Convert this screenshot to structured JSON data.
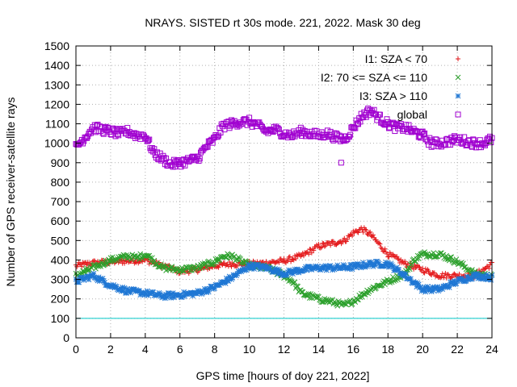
{
  "chart_data": {
    "type": "scatter",
    "title": "NRAYS. SISTED rt 30s mode. 221, 2022. Mask 30 deg",
    "xlabel": "GPS time [hours of doy 221, 2022]",
    "ylabel": "Number of GPS receiver-satellite rays",
    "xlim": [
      0,
      24
    ],
    "ylim": [
      0,
      1500
    ],
    "xticks": [
      "0",
      "2",
      "4",
      "6",
      "8",
      "10",
      "12",
      "14",
      "16",
      "18",
      "20",
      "22",
      "24"
    ],
    "yticks": [
      "0",
      "100",
      "200",
      "300",
      "400",
      "500",
      "600",
      "700",
      "800",
      "900",
      "1000",
      "1100",
      "1200",
      "1300",
      "1400",
      "1500"
    ],
    "grid": true,
    "legend_position": "top-right",
    "reference_line": {
      "y": 100,
      "color": "#00c8c8"
    },
    "series": [
      {
        "name": "I1: SZA < 70",
        "marker": "plus",
        "color": "#e41a1c",
        "x": [
          0,
          1,
          2,
          3,
          4,
          5,
          6,
          7,
          8,
          9,
          10,
          11,
          12,
          13,
          14,
          15,
          15.5,
          16,
          16.5,
          17,
          17.5,
          18,
          19,
          20,
          21,
          22,
          23,
          24
        ],
        "y": [
          370,
          385,
          390,
          395,
          400,
          370,
          340,
          350,
          370,
          380,
          380,
          385,
          395,
          420,
          470,
          490,
          500,
          540,
          560,
          530,
          480,
          430,
          380,
          350,
          320,
          320,
          320,
          380
        ]
      },
      {
        "name": "I2: 70 <= SZA <= 110",
        "marker": "cross",
        "color": "#2ca02c",
        "x": [
          0,
          1,
          2,
          3,
          3.5,
          4,
          5,
          6,
          7,
          8,
          8.5,
          9,
          10,
          11,
          12,
          12.5,
          13,
          14,
          15,
          15.5,
          16,
          17,
          18,
          19,
          19.5,
          20,
          21,
          22,
          23,
          24
        ],
        "y": [
          320,
          360,
          400,
          420,
          410,
          430,
          360,
          350,
          360,
          390,
          420,
          420,
          370,
          360,
          320,
          290,
          230,
          200,
          180,
          165,
          190,
          250,
          290,
          330,
          400,
          430,
          430,
          390,
          330,
          315
        ]
      },
      {
        "name": "I3: SZA > 110",
        "marker": "star",
        "color": "#1f77d4",
        "x": [
          0,
          1,
          2,
          3,
          4,
          5,
          6,
          7,
          8,
          9,
          10,
          11,
          12,
          13,
          14,
          15,
          16,
          17,
          18,
          19,
          20,
          21,
          22,
          23,
          24
        ],
        "y": [
          290,
          320,
          270,
          240,
          230,
          215,
          220,
          230,
          260,
          310,
          370,
          360,
          330,
          350,
          360,
          360,
          365,
          380,
          380,
          320,
          250,
          250,
          290,
          320,
          310
        ]
      },
      {
        "name": "global",
        "marker": "square",
        "color": "#a000d0",
        "x": [
          0,
          0.5,
          1,
          1.5,
          2,
          2.5,
          3,
          3.5,
          4,
          4.5,
          5,
          5.5,
          6,
          6.5,
          7,
          7.5,
          8,
          8.5,
          9,
          9.5,
          10,
          10.5,
          11,
          11.5,
          12,
          12.5,
          13,
          13.5,
          14,
          14.5,
          15,
          15.5,
          16,
          16.5,
          17,
          17.5,
          18,
          18.5,
          19,
          19.5,
          20,
          20.5,
          21,
          21.5,
          22,
          22.5,
          23,
          23.5,
          24
        ],
        "y": [
          980,
          1030,
          1080,
          1070,
          1060,
          1050,
          1060,
          1040,
          1040,
          950,
          920,
          890,
          900,
          910,
          920,
          980,
          1020,
          1090,
          1100,
          1110,
          1110,
          1090,
          1060,
          1070,
          1050,
          1040,
          1060,
          1050,
          1040,
          1050,
          1030,
          1020,
          1080,
          1140,
          1170,
          1130,
          1100,
          1080,
          1080,
          1060,
          1040,
          1000,
          1000,
          1010,
          1020,
          1010,
          1000,
          1000,
          1020
        ]
      }
    ],
    "annotations": [
      {
        "type": "outlier",
        "series": "global",
        "x": 15.3,
        "y": 900
      }
    ]
  }
}
